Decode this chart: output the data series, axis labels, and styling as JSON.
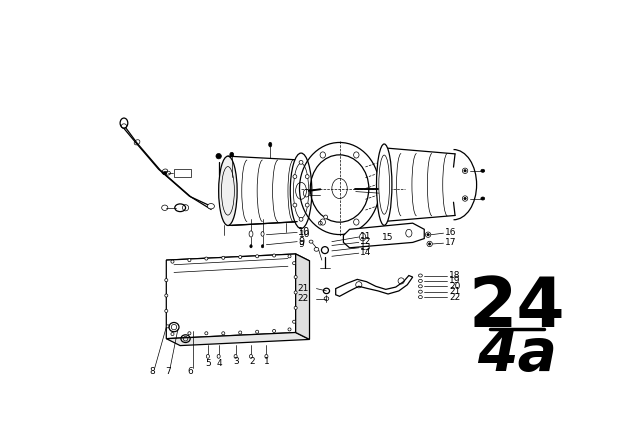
{
  "bg_color": "#ffffff",
  "line_color": "#000000",
  "title_number": "24",
  "title_sub": "4a",
  "fig_width": 6.4,
  "fig_height": 4.48,
  "dpi": 100
}
